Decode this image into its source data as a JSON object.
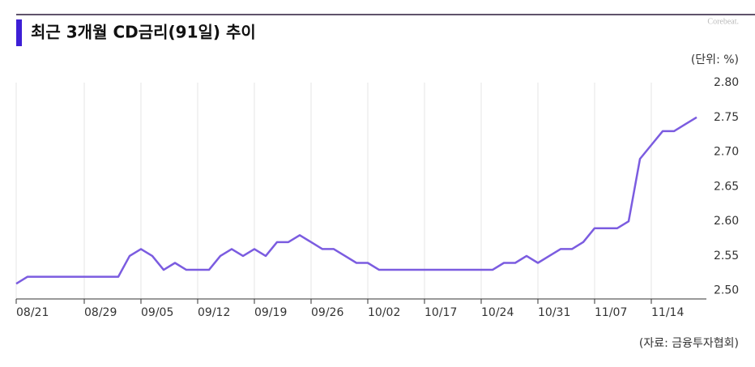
{
  "chart_data": {
    "type": "line",
    "title": "최근 3개월 CD금리(91일) 추이",
    "brand": "Corebeat.",
    "unit": "(단위: %)",
    "source": "(자료: 금융투자협회)",
    "categories": [
      "08/21",
      null,
      null,
      null,
      null,
      null,
      "08/29",
      null,
      null,
      null,
      null,
      "09/05",
      null,
      null,
      null,
      null,
      "09/12",
      null,
      null,
      null,
      null,
      "09/19",
      null,
      null,
      null,
      null,
      "09/26",
      null,
      null,
      null,
      null,
      "10/02",
      null,
      null,
      null,
      null,
      "10/17",
      null,
      null,
      null,
      null,
      "10/24",
      null,
      null,
      null,
      null,
      "10/31",
      null,
      null,
      null,
      null,
      "11/07",
      null,
      null,
      null,
      null,
      "11/14",
      null,
      null,
      null,
      null
    ],
    "series": [
      {
        "name": "CD금리(91일)",
        "color": "#7b5ce0",
        "values": [
          2.51,
          2.52,
          2.52,
          2.52,
          2.52,
          2.52,
          2.52,
          2.52,
          2.52,
          2.52,
          2.55,
          2.56,
          2.55,
          2.53,
          2.54,
          2.53,
          2.53,
          2.53,
          2.55,
          2.56,
          2.55,
          2.56,
          2.55,
          2.57,
          2.57,
          2.58,
          2.57,
          2.56,
          2.56,
          2.55,
          2.54,
          2.54,
          2.53,
          2.53,
          2.53,
          2.53,
          2.53,
          2.53,
          2.53,
          2.53,
          2.53,
          2.53,
          2.53,
          2.54,
          2.54,
          2.55,
          2.54,
          2.55,
          2.56,
          2.56,
          2.57,
          2.59,
          2.59,
          2.59,
          2.6,
          2.69,
          2.71,
          2.73,
          2.73,
          2.74,
          2.75
        ]
      }
    ],
    "ylim": [
      2.488,
      2.8
    ],
    "yticks": [
      {
        "value": 2.5,
        "label": "2.50"
      },
      {
        "value": 2.55,
        "label": "2.55"
      },
      {
        "value": 2.6,
        "label": "2.60"
      },
      {
        "value": 2.65,
        "label": "2.65"
      },
      {
        "value": 2.7,
        "label": "2.70"
      },
      {
        "value": 2.75,
        "label": "2.75"
      },
      {
        "value": 2.8,
        "label": "2.80"
      }
    ],
    "grid": true
  }
}
